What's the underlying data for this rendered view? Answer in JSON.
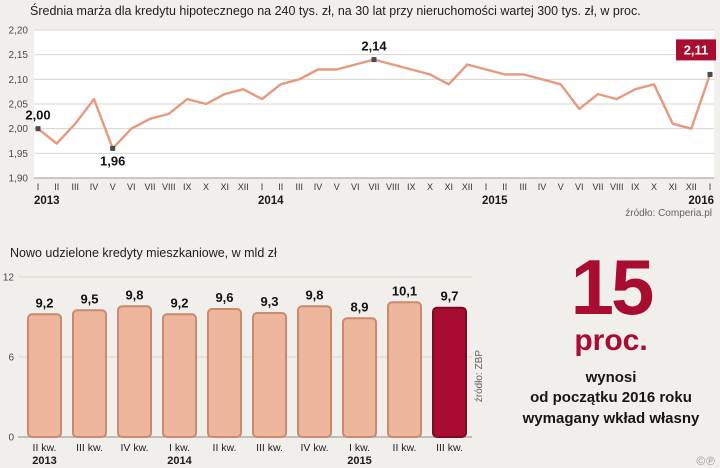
{
  "page": {
    "bg": "#f1efeb",
    "accent": "#a80d31",
    "bar_fill": "#edb69d",
    "bar_border": "#c98a6e",
    "copyright": "©℗"
  },
  "stat": {
    "value": "15",
    "unit": "proc.",
    "lines": [
      "wynosi",
      "od początku 2016 roku",
      "wymagany wkład własny"
    ]
  },
  "chart_data": [
    {
      "type": "line",
      "title": "Średnia marża dla kredytu hipotecznego na 240 tys. zł, na 30 lat przy nieruchomości wartej 300 tys. zł, w proc.",
      "source": "źródło: Comperia.pl",
      "line_color": "#e59a7d",
      "ylim": [
        1.9,
        2.2
      ],
      "yticks": [
        "2,20",
        "2,15",
        "2,10",
        "2,05",
        "2,00",
        "1,95",
        "1,90"
      ],
      "grid": true,
      "legend": "none",
      "x": [
        "I",
        "II",
        "III",
        "IV",
        "V",
        "VI",
        "VII",
        "VIII",
        "IX",
        "X",
        "XI",
        "XII",
        "I",
        "II",
        "III",
        "IV",
        "V",
        "VI",
        "VII",
        "VIII",
        "IX",
        "X",
        "XI",
        "XII",
        "I",
        "II",
        "III",
        "IV",
        "V",
        "VI",
        "VII",
        "VIII",
        "IX",
        "X",
        "XI",
        "XII",
        "I"
      ],
      "years": [
        {
          "label": "2013",
          "index": 0
        },
        {
          "label": "2014",
          "index": 12
        },
        {
          "label": "2015",
          "index": 24
        },
        {
          "label": "2016",
          "index": 36
        }
      ],
      "values": [
        2.0,
        1.97,
        2.01,
        2.06,
        1.96,
        2.0,
        2.02,
        2.03,
        2.06,
        2.05,
        2.07,
        2.08,
        2.06,
        2.09,
        2.1,
        2.12,
        2.12,
        2.13,
        2.14,
        2.13,
        2.12,
        2.11,
        2.09,
        2.13,
        2.12,
        2.11,
        2.11,
        2.1,
        2.09,
        2.04,
        2.07,
        2.06,
        2.08,
        2.09,
        2.01,
        2.0,
        2.11
      ],
      "annotations": [
        {
          "index": 0,
          "text": "2,00",
          "position": "above",
          "highlight": false
        },
        {
          "index": 4,
          "text": "1,96",
          "position": "below",
          "highlight": false
        },
        {
          "index": 18,
          "text": "2,14",
          "position": "above",
          "highlight": false
        },
        {
          "index": 36,
          "text": "2,11",
          "position": "above",
          "highlight": true
        }
      ]
    },
    {
      "type": "bar",
      "title": "Nowo udzielone kredyty mieszkaniowe, w mld zł",
      "source": "źródło: ZBP",
      "ylim": [
        0,
        12
      ],
      "yticks": [
        0,
        6,
        12
      ],
      "values": [
        9.2,
        9.5,
        9.8,
        9.2,
        9.6,
        9.3,
        9.8,
        8.9,
        10.1,
        9.7
      ],
      "labels": [
        "9,2",
        "9,5",
        "9,8",
        "9,2",
        "9,6",
        "9,3",
        "9,8",
        "8,9",
        "10,1",
        "9,7"
      ],
      "highlight_index": 9,
      "categories": [
        {
          "q": "II kw.",
          "y": "2013"
        },
        {
          "q": "III kw.",
          "y": ""
        },
        {
          "q": "IV kw.",
          "y": ""
        },
        {
          "q": "I kw.",
          "y": "2014"
        },
        {
          "q": "II kw.",
          "y": ""
        },
        {
          "q": "III kw.",
          "y": ""
        },
        {
          "q": "IV kw.",
          "y": ""
        },
        {
          "q": "I kw.",
          "y": "2015"
        },
        {
          "q": "II kw.",
          "y": ""
        },
        {
          "q": "III kw.",
          "y": ""
        }
      ]
    }
  ]
}
